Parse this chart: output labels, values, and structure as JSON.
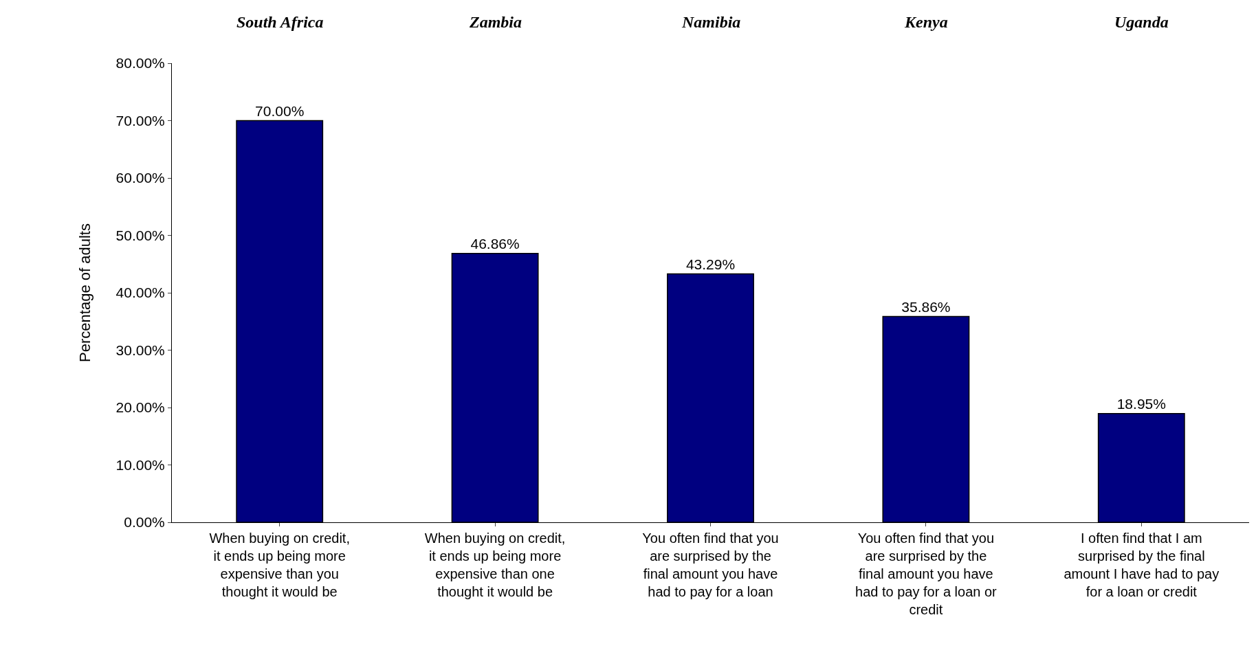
{
  "chart_data": {
    "type": "bar",
    "ylabel": "Percentage of adults",
    "categories": [
      "When buying on credit, it ends up being more expensive than you thought it would be",
      "When buying on credit, it ends up being more expensive than one thought it would be",
      "You often find that you are surprised by the final amount you have had to pay for a loan",
      "You often find that you are surprised by the final amount you have had to pay for a loan or credit",
      "I often find that I am surprised by the final amount I have had to pay for a loan or credit"
    ],
    "values": [
      70.0,
      46.86,
      43.29,
      35.86,
      18.95
    ],
    "value_labels": [
      "70.00%",
      "46.86%",
      "43.29%",
      "35.86%",
      "18.95%"
    ],
    "color": "#000080",
    "annotations": [
      "South Africa",
      "Zambia",
      "Namibia",
      "Kenya",
      "Uganda"
    ],
    "ylim": [
      0,
      80
    ],
    "yticks": [
      {
        "value": 0,
        "label": "0.00%"
      },
      {
        "value": 10,
        "label": "10.00%"
      },
      {
        "value": 20,
        "label": "20.00%"
      },
      {
        "value": 30,
        "label": "30.00%"
      },
      {
        "value": 40,
        "label": "40.00%"
      },
      {
        "value": 50,
        "label": "50.00%"
      },
      {
        "value": 60,
        "label": "60.00%"
      },
      {
        "value": 70,
        "label": "70.00%"
      },
      {
        "value": 80,
        "label": "80.00%"
      }
    ],
    "legend": false
  }
}
